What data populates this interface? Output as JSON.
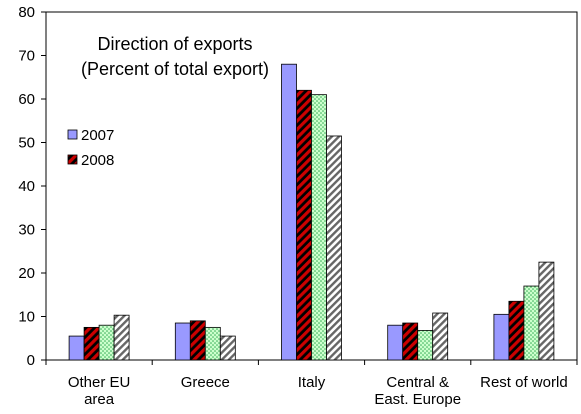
{
  "chart_data": {
    "type": "bar",
    "title_lines": [
      "Direction of exports",
      "(Percent of total export)"
    ],
    "categories": [
      [
        "Other EU",
        "area"
      ],
      [
        "Greece"
      ],
      [
        "Italy"
      ],
      [
        "Central &",
        "East. Europe"
      ],
      [
        "Rest of world"
      ]
    ],
    "series": [
      {
        "name": "2007",
        "values": [
          5.5,
          8.5,
          68,
          8,
          10.5
        ],
        "color": "#9999ff",
        "pattern": "solid"
      },
      {
        "name": "2008",
        "values": [
          7.5,
          9,
          62,
          8.5,
          13.5
        ],
        "color": "#cc0000",
        "pattern": "diagonal-stripes"
      },
      {
        "values": [
          8,
          7.5,
          61,
          6.8,
          17
        ],
        "color": "#ccffcc",
        "pattern": "dots"
      },
      {
        "values": [
          10.3,
          5.5,
          51.5,
          10.8,
          22.5
        ],
        "color": "#ffffff",
        "pattern": "gray-diagonal"
      }
    ],
    "yticks": [
      0,
      10,
      20,
      30,
      40,
      50,
      60,
      70,
      80
    ],
    "ylim": [
      0,
      80
    ],
    "legend_position": "left"
  }
}
